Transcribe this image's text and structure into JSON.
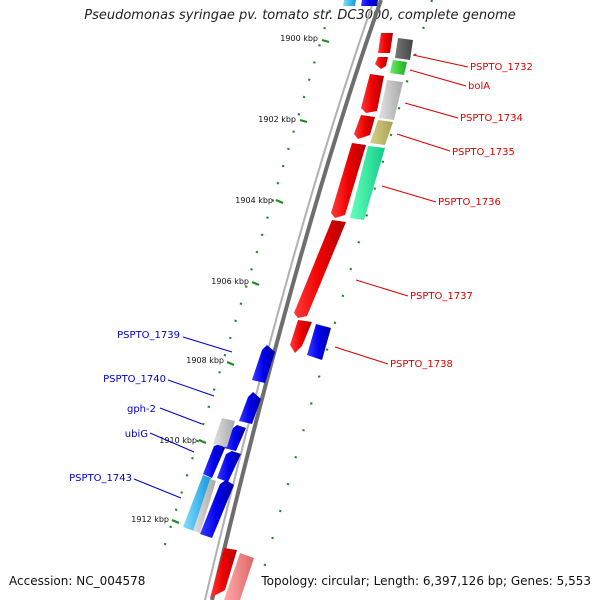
{
  "title": "Pseudomonas syringae pv. tomato str. DC3000, complete genome",
  "footer": {
    "accession": "Accession: NC_004578",
    "summary": "Topology: circular; Length: 6,397,126 bp; Genes: 5,553"
  },
  "colors": {
    "forward_strand": "#ee1111",
    "reverse_strand": "#1111dd",
    "forward_label": "#dd0000",
    "reverse_label": "#0000cc",
    "ruler": "#1f8a1f",
    "backbone": "#888888"
  },
  "kbp_labels": [
    "1900 kbp",
    "1902 kbp",
    "1904 kbp",
    "1906 kbp",
    "1908 kbp",
    "1910 kbp",
    "1912 kbp"
  ],
  "forward_genes": [
    "PSPTO_1732",
    "bolA",
    "PSPTO_1734",
    "PSPTO_1735",
    "PSPTO_1736",
    "PSPTO_1737",
    "PSPTO_1738"
  ],
  "reverse_genes": [
    "PSPTO_1739",
    "PSPTO_1740",
    "gph-2",
    "ubiG",
    "PSPTO_1743"
  ]
}
